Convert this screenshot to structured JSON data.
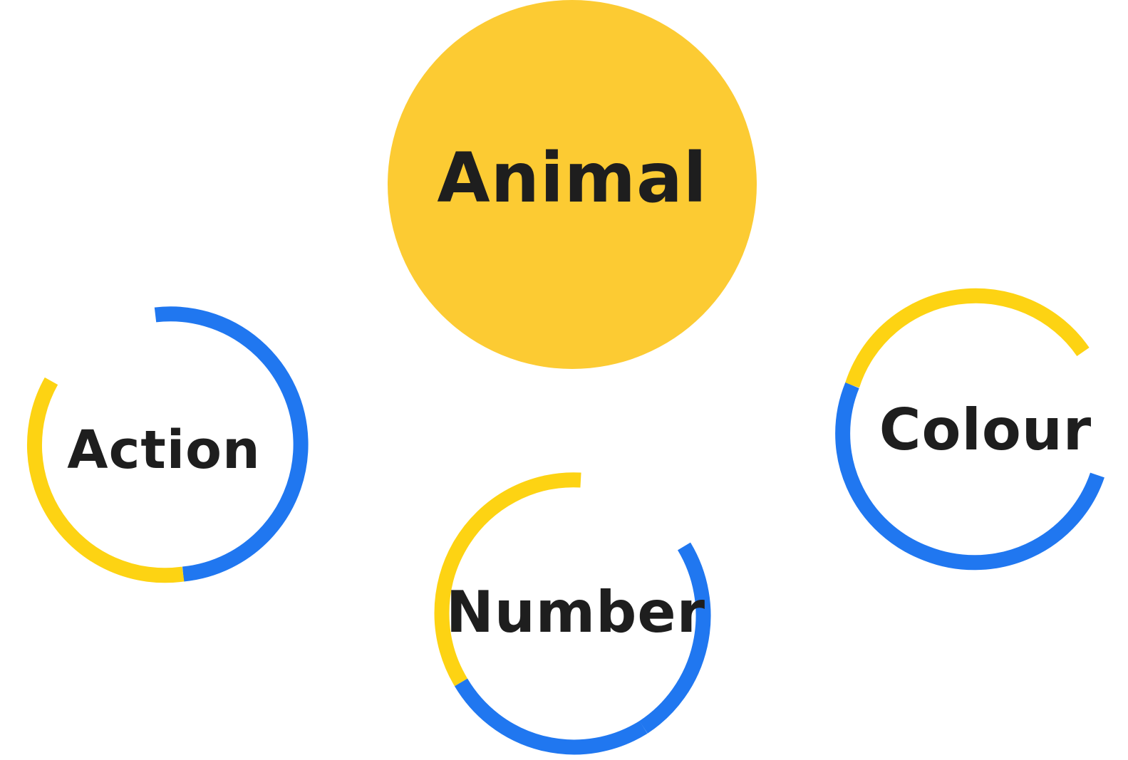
{
  "colors": {
    "background": "#ffffff",
    "selected_fill": "#FCCB33",
    "ring_yellow": "#FDD313",
    "ring_blue": "#2077F0",
    "label_text": "#1e1e1e"
  },
  "categories": [
    {
      "id": "animal",
      "label": "Animal",
      "state": "selected"
    },
    {
      "id": "action",
      "label": "Action",
      "state": "unselected"
    },
    {
      "id": "number",
      "label": "Number",
      "state": "unselected"
    },
    {
      "id": "colour",
      "label": "Colour",
      "state": "unselected"
    }
  ]
}
